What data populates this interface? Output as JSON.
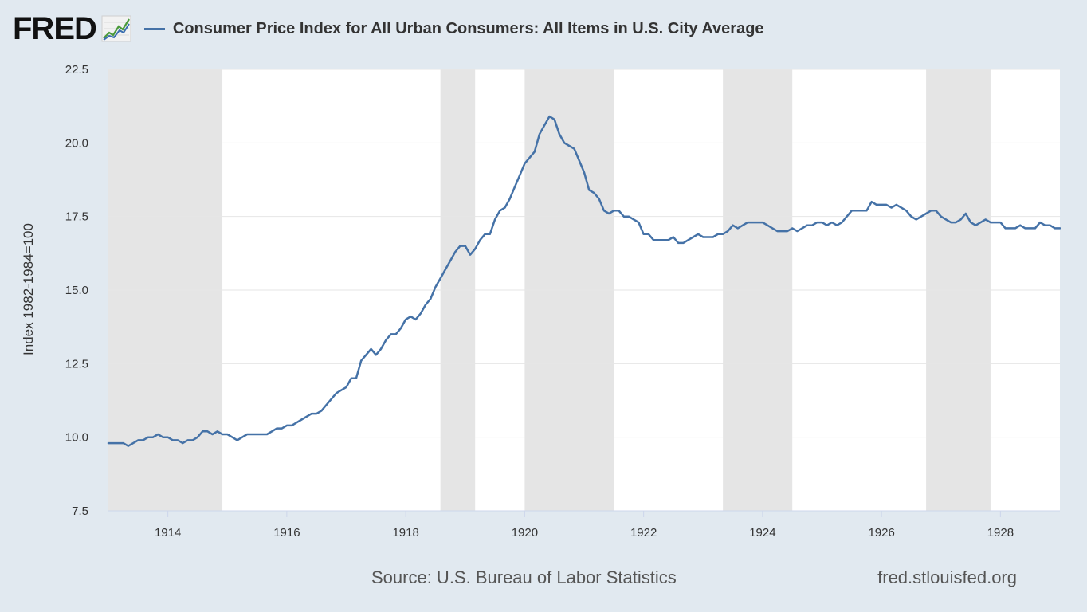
{
  "header": {
    "logo_text": "FRED",
    "logo_icon": "trend-graph-icon",
    "title": "Consumer Price Index for All Urban Consumers: All Items in U.S. City Average"
  },
  "footer": {
    "source": "Source: U.S. Bureau of Labor Statistics",
    "site": "fred.stlouisfed.org"
  },
  "colors": {
    "series": "#4572a7",
    "recession": "#e5e5e5",
    "grid": "#e6e6e6",
    "background": "#e1e9f0",
    "plot_background": "#ffffff"
  },
  "chart_data": {
    "type": "line",
    "title": "Consumer Price Index for All Urban Consumers: All Items in U.S. City Average",
    "xlabel": "",
    "ylabel": "Index 1982-1984=100",
    "xlim": [
      "1913-01",
      "1929-01"
    ],
    "ylim": [
      7.5,
      22.5
    ],
    "yticks": [
      7.5,
      10.0,
      12.5,
      15.0,
      17.5,
      20.0,
      22.5
    ],
    "xticks": [
      "1914",
      "1916",
      "1918",
      "1920",
      "1922",
      "1924",
      "1926",
      "1928"
    ],
    "grid": true,
    "recessions": [
      [
        "1913-01",
        "1914-12"
      ],
      [
        "1918-08",
        "1919-03"
      ],
      [
        "1920-01",
        "1921-07"
      ],
      [
        "1923-05",
        "1924-07"
      ],
      [
        "1926-10",
        "1927-11"
      ]
    ],
    "series": [
      {
        "name": "Consumer Price Index for All Urban Consumers: All Items in U.S. City Average",
        "x": [
          "1913-01",
          "1913-02",
          "1913-03",
          "1913-04",
          "1913-05",
          "1913-06",
          "1913-07",
          "1913-08",
          "1913-09",
          "1913-10",
          "1913-11",
          "1913-12",
          "1914-01",
          "1914-02",
          "1914-03",
          "1914-04",
          "1914-05",
          "1914-06",
          "1914-07",
          "1914-08",
          "1914-09",
          "1914-10",
          "1914-11",
          "1914-12",
          "1915-01",
          "1915-02",
          "1915-03",
          "1915-04",
          "1915-05",
          "1915-06",
          "1915-07",
          "1915-08",
          "1915-09",
          "1915-10",
          "1915-11",
          "1915-12",
          "1916-01",
          "1916-02",
          "1916-03",
          "1916-04",
          "1916-05",
          "1916-06",
          "1916-07",
          "1916-08",
          "1916-09",
          "1916-10",
          "1916-11",
          "1916-12",
          "1917-01",
          "1917-02",
          "1917-03",
          "1917-04",
          "1917-05",
          "1917-06",
          "1917-07",
          "1917-08",
          "1917-09",
          "1917-10",
          "1917-11",
          "1917-12",
          "1918-01",
          "1918-02",
          "1918-03",
          "1918-04",
          "1918-05",
          "1918-06",
          "1918-07",
          "1918-08",
          "1918-09",
          "1918-10",
          "1918-11",
          "1918-12",
          "1919-01",
          "1919-02",
          "1919-03",
          "1919-04",
          "1919-05",
          "1919-06",
          "1919-07",
          "1919-08",
          "1919-09",
          "1919-10",
          "1919-11",
          "1919-12",
          "1920-01",
          "1920-02",
          "1920-03",
          "1920-04",
          "1920-05",
          "1920-06",
          "1920-07",
          "1920-08",
          "1920-09",
          "1920-10",
          "1920-11",
          "1920-12",
          "1921-01",
          "1921-02",
          "1921-03",
          "1921-04",
          "1921-05",
          "1921-06",
          "1921-07",
          "1921-08",
          "1921-09",
          "1921-10",
          "1921-11",
          "1921-12",
          "1922-01",
          "1922-02",
          "1922-03",
          "1922-04",
          "1922-05",
          "1922-06",
          "1922-07",
          "1922-08",
          "1922-09",
          "1922-10",
          "1922-11",
          "1922-12",
          "1923-01",
          "1923-02",
          "1923-03",
          "1923-04",
          "1923-05",
          "1923-06",
          "1923-07",
          "1923-08",
          "1923-09",
          "1923-10",
          "1923-11",
          "1923-12",
          "1924-01",
          "1924-02",
          "1924-03",
          "1924-04",
          "1924-05",
          "1924-06",
          "1924-07",
          "1924-08",
          "1924-09",
          "1924-10",
          "1924-11",
          "1924-12",
          "1925-01",
          "1925-02",
          "1925-03",
          "1925-04",
          "1925-05",
          "1925-06",
          "1925-07",
          "1925-08",
          "1925-09",
          "1925-10",
          "1925-11",
          "1925-12",
          "1926-01",
          "1926-02",
          "1926-03",
          "1926-04",
          "1926-05",
          "1926-06",
          "1926-07",
          "1926-08",
          "1926-09",
          "1926-10",
          "1926-11",
          "1926-12",
          "1927-01",
          "1927-02",
          "1927-03",
          "1927-04",
          "1927-05",
          "1927-06",
          "1927-07",
          "1927-08",
          "1927-09",
          "1927-10",
          "1927-11",
          "1927-12",
          "1928-01",
          "1928-02",
          "1928-03",
          "1928-04",
          "1928-05",
          "1928-06",
          "1928-07",
          "1928-08",
          "1928-09",
          "1928-10",
          "1928-11",
          "1928-12",
          "1929-01"
        ],
        "values": [
          9.8,
          9.8,
          9.8,
          9.8,
          9.7,
          9.8,
          9.9,
          9.9,
          10.0,
          10.0,
          10.1,
          10.0,
          10.0,
          9.9,
          9.9,
          9.8,
          9.9,
          9.9,
          10.0,
          10.2,
          10.2,
          10.1,
          10.2,
          10.1,
          10.1,
          10.0,
          9.9,
          10.0,
          10.1,
          10.1,
          10.1,
          10.1,
          10.1,
          10.2,
          10.3,
          10.3,
          10.4,
          10.4,
          10.5,
          10.6,
          10.7,
          10.8,
          10.8,
          10.9,
          11.1,
          11.3,
          11.5,
          11.6,
          11.7,
          12.0,
          12.0,
          12.6,
          12.8,
          13.0,
          12.8,
          13.0,
          13.3,
          13.5,
          13.5,
          13.7,
          14.0,
          14.1,
          14.0,
          14.2,
          14.5,
          14.7,
          15.1,
          15.4,
          15.7,
          16.0,
          16.3,
          16.5,
          16.5,
          16.2,
          16.4,
          16.7,
          16.9,
          16.9,
          17.4,
          17.7,
          17.8,
          18.1,
          18.5,
          18.9,
          19.3,
          19.5,
          19.7,
          20.3,
          20.6,
          20.9,
          20.8,
          20.3,
          20.0,
          19.9,
          19.8,
          19.4,
          19.0,
          18.4,
          18.3,
          18.1,
          17.7,
          17.6,
          17.7,
          17.7,
          17.5,
          17.5,
          17.4,
          17.3,
          16.9,
          16.9,
          16.7,
          16.7,
          16.7,
          16.7,
          16.8,
          16.6,
          16.6,
          16.7,
          16.8,
          16.9,
          16.8,
          16.8,
          16.8,
          16.9,
          16.9,
          17.0,
          17.2,
          17.1,
          17.2,
          17.3,
          17.3,
          17.3,
          17.3,
          17.2,
          17.1,
          17.0,
          17.0,
          17.0,
          17.1,
          17.0,
          17.1,
          17.2,
          17.2,
          17.3,
          17.3,
          17.2,
          17.3,
          17.2,
          17.3,
          17.5,
          17.7,
          17.7,
          17.7,
          17.7,
          18.0,
          17.9,
          17.9,
          17.9,
          17.8,
          17.9,
          17.8,
          17.7,
          17.5,
          17.4,
          17.5,
          17.6,
          17.7,
          17.7,
          17.5,
          17.4,
          17.3,
          17.3,
          17.4,
          17.6,
          17.3,
          17.2,
          17.3,
          17.4,
          17.3,
          17.3,
          17.3,
          17.1,
          17.1,
          17.1,
          17.2,
          17.1,
          17.1,
          17.1,
          17.3,
          17.2,
          17.2,
          17.1,
          17.1
        ]
      }
    ]
  }
}
